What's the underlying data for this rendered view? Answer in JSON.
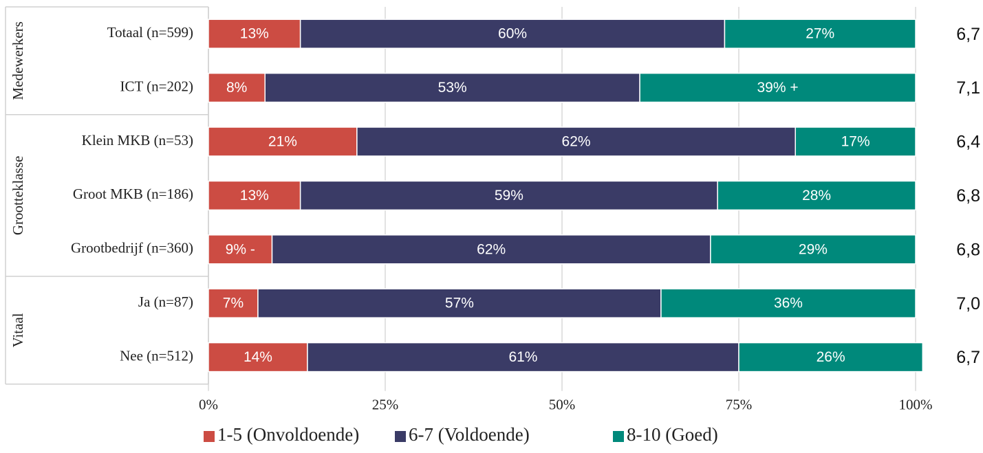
{
  "chart_data": {
    "type": "stacked-bar-horizontal",
    "groups": [
      {
        "name": "Medewerkers",
        "categories": [
          "Totaal (n=599)",
          "ICT (n=202)"
        ]
      },
      {
        "name": "Grootteklasse",
        "categories": [
          "Klein MKB (n=53)",
          "Groot MKB (n=186)",
          "Grootbedrijf (n=360)"
        ]
      },
      {
        "name": "Vitaal",
        "categories": [
          "Ja (n=87)",
          "Nee (n=512)"
        ]
      }
    ],
    "series": [
      {
        "name": "1-5 (Onvoldoende)",
        "color": "#cc4c43",
        "values": [
          13,
          8,
          21,
          13,
          9,
          7,
          14
        ],
        "value_labels": [
          "13%",
          "8%",
          "21%",
          "13%",
          "9% -",
          "7%",
          "14%"
        ]
      },
      {
        "name": "6-7 (Voldoende)",
        "color": "#3a3b66",
        "values": [
          60,
          53,
          62,
          59,
          62,
          57,
          61
        ],
        "value_labels": [
          "60%",
          "53%",
          "62%",
          "59%",
          "62%",
          "57%",
          "61%"
        ]
      },
      {
        "name": "8-10 (Goed)",
        "color": "#00897b",
        "values": [
          27,
          39,
          17,
          28,
          29,
          36,
          26
        ],
        "value_labels": [
          "27%",
          "39% +",
          "17%",
          "28%",
          "29%",
          "36%",
          "26%"
        ]
      }
    ],
    "averages": [
      "6,7",
      "7,1",
      "6,4",
      "6,8",
      "6,8",
      "7,0",
      "6,7"
    ],
    "xlim": [
      0,
      100
    ],
    "xticks": [
      {
        "value": 0,
        "label": "0%"
      },
      {
        "value": 25,
        "label": "25%"
      },
      {
        "value": 50,
        "label": "50%"
      },
      {
        "value": 75,
        "label": "75%"
      },
      {
        "value": 100,
        "label": "100%"
      }
    ],
    "grid": true,
    "legend": "bottom"
  }
}
